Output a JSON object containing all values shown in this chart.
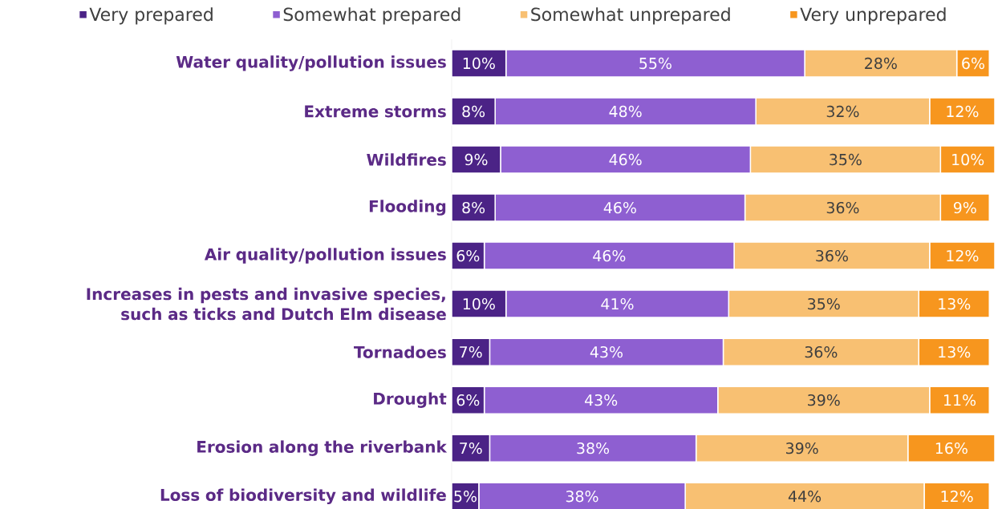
{
  "chart_data": {
    "type": "bar",
    "orientation": "horizontal",
    "stacked": true,
    "legend": "top",
    "tick_labels": "y",
    "xlim": [
      0,
      100
    ],
    "categories": [
      "Water quality/pollution issues",
      "Extreme storms",
      "Wildfires",
      "Flooding",
      "Air quality/pollution issues",
      "Increases in pests and invasive species, such as ticks and Dutch Elm disease",
      "Tornadoes",
      "Drought",
      "Erosion along the riverbank",
      "Loss of biodiversity and wildlife"
    ],
    "series": [
      {
        "name": "Very prepared",
        "color": "#4b2386",
        "values": [
          10,
          8,
          9,
          8,
          6,
          10,
          7,
          6,
          7,
          5
        ],
        "value_labels": [
          "10%",
          "8%",
          "9%",
          "8%",
          "6%",
          "10%",
          "7%",
          "6%",
          "7%",
          "5%"
        ]
      },
      {
        "name": "Somewhat prepared",
        "color": "#8e5fd1",
        "values": [
          55,
          48,
          46,
          46,
          46,
          41,
          43,
          43,
          38,
          38
        ],
        "value_labels": [
          "55%",
          "48%",
          "46%",
          "46%",
          "46%",
          "41%",
          "43%",
          "43%",
          "38%",
          "38%"
        ]
      },
      {
        "name": "Somewhat unprepared",
        "color": "#f8c072",
        "values": [
          28,
          32,
          35,
          36,
          36,
          35,
          36,
          39,
          39,
          44
        ],
        "value_labels": [
          "28%",
          "32%",
          "35%",
          "36%",
          "36%",
          "35%",
          "36%",
          "39%",
          "39%",
          "44%"
        ]
      },
      {
        "name": "Very unprepared",
        "color": "#f7961e",
        "values": [
          6,
          12,
          10,
          9,
          12,
          13,
          13,
          11,
          16,
          12
        ],
        "value_labels": [
          "6%",
          "12%",
          "10%",
          "9%",
          "12%",
          "13%",
          "13%",
          "11%",
          "16%",
          "12%"
        ]
      }
    ]
  }
}
